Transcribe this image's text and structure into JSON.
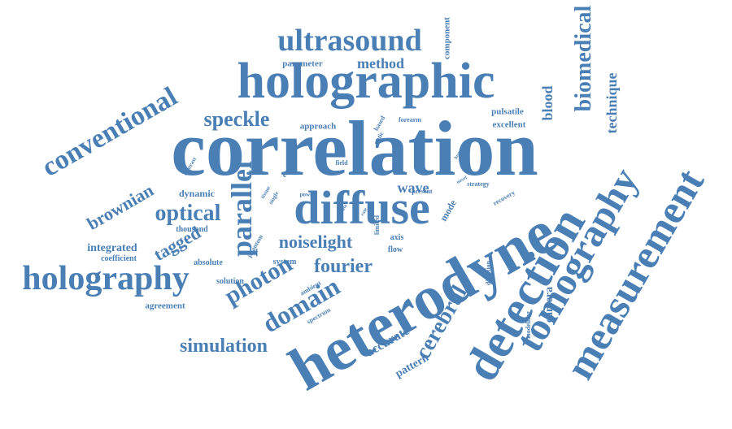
{
  "cloud": {
    "color": "#4a7fb5",
    "words": [
      {
        "text": "correlation",
        "angle": 0
      },
      {
        "text": "heterodyne",
        "angle": -30
      },
      {
        "text": "holographic",
        "angle": 0
      },
      {
        "text": "diffuse",
        "angle": 0
      },
      {
        "text": "detection",
        "angle": -60
      },
      {
        "text": "measurement",
        "angle": -60
      },
      {
        "text": "tomography",
        "angle": -60
      },
      {
        "text": "holography",
        "angle": 0
      },
      {
        "text": "ultrasound",
        "angle": 0
      },
      {
        "text": "conventional",
        "angle": -30
      },
      {
        "text": "biomedical",
        "angle": -90
      },
      {
        "text": "parallel",
        "angle": -90
      },
      {
        "text": "domain",
        "angle": -30
      },
      {
        "text": "photon",
        "angle": -30
      },
      {
        "text": "optical",
        "angle": 0
      },
      {
        "text": "cerebral",
        "angle": -60
      },
      {
        "text": "simulation",
        "angle": 0
      },
      {
        "text": "fourier",
        "angle": 0
      },
      {
        "text": "speckle",
        "angle": 0
      },
      {
        "text": "brownian",
        "angle": -30
      },
      {
        "text": "tagged",
        "angle": -30
      },
      {
        "text": "noiselight",
        "angle": 0
      },
      {
        "text": "technique",
        "angle": -90
      },
      {
        "text": "blood",
        "angle": -90
      },
      {
        "text": "wave",
        "angle": 0
      },
      {
        "text": "accurate",
        "angle": -30
      },
      {
        "text": "pattern",
        "angle": -30
      },
      {
        "text": "camera",
        "angle": -90
      },
      {
        "text": "method",
        "angle": 0
      },
      {
        "text": "integrated",
        "angle": 0
      },
      {
        "text": "dynamic",
        "angle": 0
      },
      {
        "text": "mode",
        "angle": -60
      },
      {
        "text": "agreement",
        "angle": 0
      },
      {
        "text": "parameter",
        "angle": 0
      },
      {
        "text": "approach",
        "angle": 0
      },
      {
        "text": "component",
        "angle": -90
      },
      {
        "text": "pulsatile",
        "angle": 0
      },
      {
        "text": "excellent",
        "angle": 0
      },
      {
        "text": "axis",
        "angle": 0
      },
      {
        "text": "flow",
        "angle": 0
      },
      {
        "text": "system",
        "angle": 0
      },
      {
        "text": "coefficient",
        "angle": 0
      },
      {
        "text": "thousand",
        "angle": 0
      },
      {
        "text": "absolute",
        "angle": 0
      },
      {
        "text": "solution",
        "angle": 0
      },
      {
        "text": "ambient",
        "angle": -30
      },
      {
        "text": "spectrum",
        "angle": -30
      },
      {
        "text": "phantom",
        "angle": -60
      },
      {
        "text": "time",
        "angle": -60
      },
      {
        "text": "electric",
        "angle": -60
      },
      {
        "text": "optic",
        "angle": -60
      },
      {
        "text": "based",
        "angle": -60
      },
      {
        "text": "forearm",
        "angle": 0
      },
      {
        "text": "present",
        "angle": 0
      },
      {
        "text": "strategy",
        "angle": 0
      },
      {
        "text": "recovery",
        "angle": -30
      },
      {
        "text": "modelling",
        "angle": -90
      },
      {
        "text": "diffusion",
        "angle": -90
      },
      {
        "text": "limited",
        "angle": -90
      },
      {
        "text": "field",
        "angle": 0
      },
      {
        "text": "contrast",
        "angle": -60
      },
      {
        "text": "tissue",
        "angle": -60
      },
      {
        "text": "single",
        "angle": -60
      },
      {
        "text": "power",
        "angle": 0
      },
      {
        "text": "model",
        "angle": -60
      },
      {
        "text": "human",
        "angle": -60
      },
      {
        "text": "novel",
        "angle": -30
      },
      {
        "text": "data",
        "angle": -60
      },
      {
        "text": "rate",
        "angle": -60
      }
    ]
  }
}
